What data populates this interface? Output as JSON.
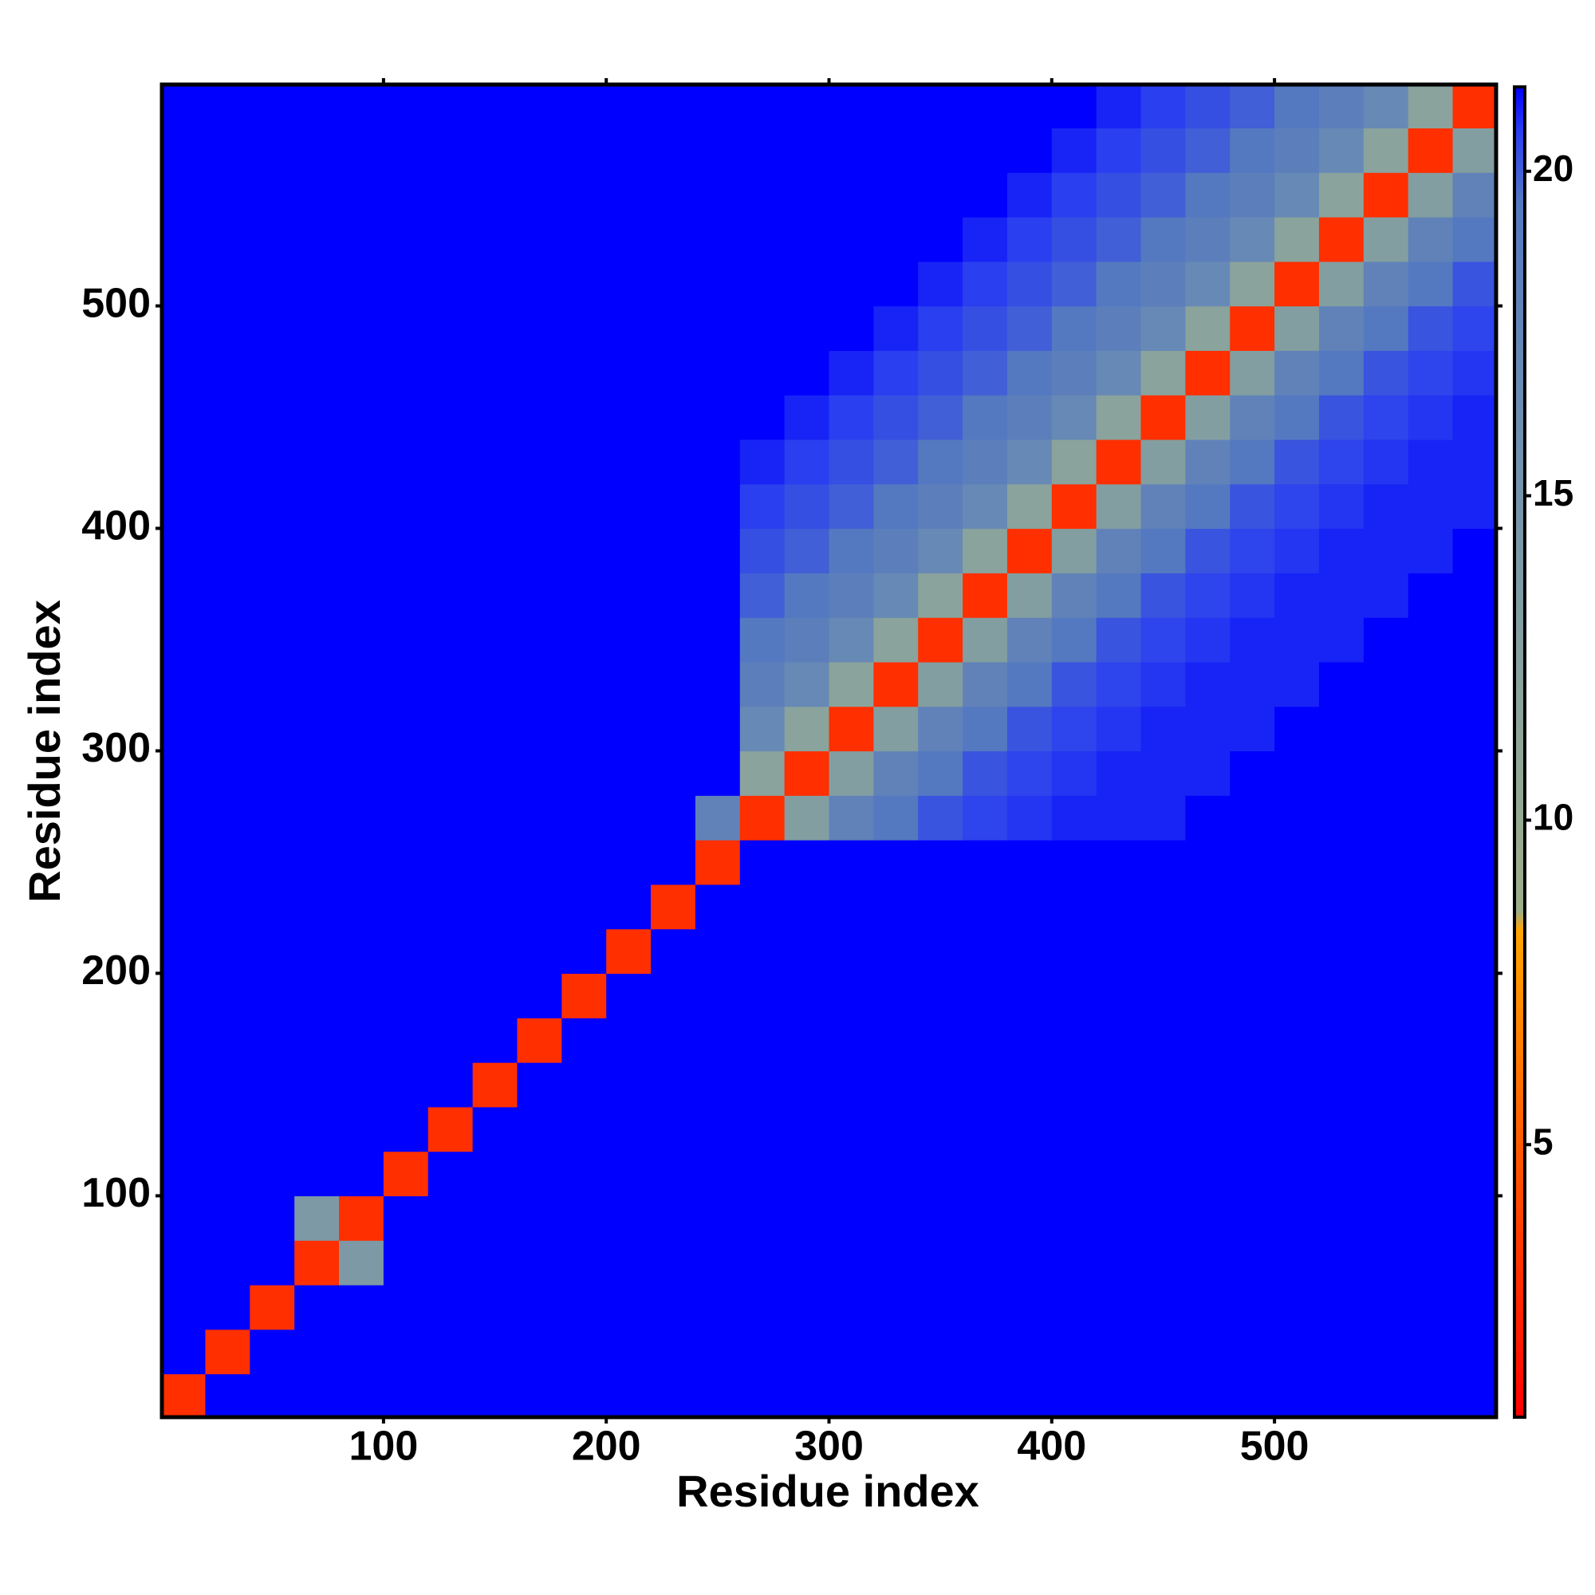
{
  "chart_data": {
    "type": "heatmap",
    "xlabel": "Residue index",
    "ylabel": "Residue index",
    "xlim": [
      0.5,
      599.5
    ],
    "ylim": [
      0.5,
      599.5
    ],
    "xticks": [
      100,
      200,
      300,
      400,
      500
    ],
    "yticks": [
      100,
      200,
      300,
      400,
      500
    ],
    "x": [
      10,
      30,
      50,
      70,
      90,
      110,
      130,
      150,
      170,
      190,
      210,
      230,
      250,
      270,
      290,
      310,
      330,
      350,
      370,
      390,
      410,
      430,
      450,
      470,
      490,
      510,
      530,
      550,
      570,
      590
    ],
    "y": [
      10,
      30,
      50,
      70,
      90,
      110,
      130,
      150,
      170,
      190,
      210,
      230,
      250,
      270,
      290,
      310,
      330,
      350,
      370,
      390,
      410,
      430,
      450,
      470,
      490,
      510,
      530,
      550,
      570,
      590
    ],
    "colorscale": [
      [
        0.8,
        "#ff0000"
      ],
      [
        5,
        "#ff5a00"
      ],
      [
        8.3,
        "#ffa500"
      ],
      [
        8.6,
        "#9cae8a"
      ],
      [
        12,
        "#8aa39c"
      ],
      [
        16,
        "#6f8fb0"
      ],
      [
        19.5,
        "#5479c0"
      ],
      [
        20.6,
        "#2a3ff0"
      ],
      [
        21.3,
        "#0000ff"
      ]
    ],
    "colorbar": {
      "lim": [
        0.8,
        21.3
      ],
      "ticks": [
        5,
        10,
        15,
        20
      ]
    },
    "values": [
      [
        3,
        21.3,
        21.3,
        21.3,
        21.3,
        21.3,
        21.3,
        21.3,
        21.3,
        21.3,
        21.3,
        21.3,
        21.3,
        21.3,
        21.3,
        21.3,
        21.3,
        21.3,
        21.3,
        21.3,
        21.3,
        21.3,
        21.3,
        21.3,
        21.3,
        21.3,
        21.3,
        21.3,
        21.3,
        21.3
      ],
      [
        21.3,
        3,
        21.3,
        21.3,
        21.3,
        21.3,
        21.3,
        21.3,
        21.3,
        21.3,
        21.3,
        21.3,
        21.3,
        21.3,
        21.3,
        21.3,
        21.3,
        21.3,
        21.3,
        21.3,
        21.3,
        21.3,
        21.3,
        21.3,
        21.3,
        21.3,
        21.3,
        21.3,
        21.3,
        21.3
      ],
      [
        21.3,
        21.3,
        3,
        21.3,
        21.3,
        21.3,
        21.3,
        21.3,
        21.3,
        21.3,
        21.3,
        21.3,
        21.3,
        21.3,
        21.3,
        21.3,
        21.3,
        21.3,
        21.3,
        21.3,
        21.3,
        21.3,
        21.3,
        21.3,
        21.3,
        21.3,
        21.3,
        21.3,
        21.3,
        21.3
      ],
      [
        21.3,
        21.3,
        21.3,
        3,
        14,
        21.3,
        21.3,
        21.3,
        21.3,
        21.3,
        21.3,
        21.3,
        21.3,
        21.3,
        21.3,
        21.3,
        21.3,
        21.3,
        21.3,
        21.3,
        21.3,
        21.3,
        21.3,
        21.3,
        21.3,
        21.3,
        21.3,
        21.3,
        21.3,
        21.3
      ],
      [
        21.3,
        21.3,
        21.3,
        14,
        3,
        21.3,
        21.3,
        21.3,
        21.3,
        21.3,
        21.3,
        21.3,
        21.3,
        21.3,
        21.3,
        21.3,
        21.3,
        21.3,
        21.3,
        21.3,
        21.3,
        21.3,
        21.3,
        21.3,
        21.3,
        21.3,
        21.3,
        21.3,
        21.3,
        21.3
      ],
      [
        21.3,
        21.3,
        21.3,
        21.3,
        21.3,
        3,
        21.3,
        21.3,
        21.3,
        21.3,
        21.3,
        21.3,
        21.3,
        21.3,
        21.3,
        21.3,
        21.3,
        21.3,
        21.3,
        21.3,
        21.3,
        21.3,
        21.3,
        21.3,
        21.3,
        21.3,
        21.3,
        21.3,
        21.3,
        21.3
      ],
      [
        21.3,
        21.3,
        21.3,
        21.3,
        21.3,
        21.3,
        3,
        21.3,
        21.3,
        21.3,
        21.3,
        21.3,
        21.3,
        21.3,
        21.3,
        21.3,
        21.3,
        21.3,
        21.3,
        21.3,
        21.3,
        21.3,
        21.3,
        21.3,
        21.3,
        21.3,
        21.3,
        21.3,
        21.3,
        21.3
      ],
      [
        21.3,
        21.3,
        21.3,
        21.3,
        21.3,
        21.3,
        21.3,
        3,
        21.3,
        21.3,
        21.3,
        21.3,
        21.3,
        21.3,
        21.3,
        21.3,
        21.3,
        21.3,
        21.3,
        21.3,
        21.3,
        21.3,
        21.3,
        21.3,
        21.3,
        21.3,
        21.3,
        21.3,
        21.3,
        21.3
      ],
      [
        21.3,
        21.3,
        21.3,
        21.3,
        21.3,
        21.3,
        21.3,
        21.3,
        3,
        21.3,
        21.3,
        21.3,
        21.3,
        21.3,
        21.3,
        21.3,
        21.3,
        21.3,
        21.3,
        21.3,
        21.3,
        21.3,
        21.3,
        21.3,
        21.3,
        21.3,
        21.3,
        21.3,
        21.3,
        21.3
      ],
      [
        21.3,
        21.3,
        21.3,
        21.3,
        21.3,
        21.3,
        21.3,
        21.3,
        21.3,
        3,
        21.3,
        21.3,
        21.3,
        21.3,
        21.3,
        21.3,
        21.3,
        21.3,
        21.3,
        21.3,
        21.3,
        21.3,
        21.3,
        21.3,
        21.3,
        21.3,
        21.3,
        21.3,
        21.3,
        21.3
      ],
      [
        21.3,
        21.3,
        21.3,
        21.3,
        21.3,
        21.3,
        21.3,
        21.3,
        21.3,
        21.3,
        3,
        21.3,
        21.3,
        21.3,
        21.3,
        21.3,
        21.3,
        21.3,
        21.3,
        21.3,
        21.3,
        21.3,
        21.3,
        21.3,
        21.3,
        21.3,
        21.3,
        21.3,
        21.3,
        21.3
      ],
      [
        21.3,
        21.3,
        21.3,
        21.3,
        21.3,
        21.3,
        21.3,
        21.3,
        21.3,
        21.3,
        21.3,
        3,
        21.3,
        21.3,
        21.3,
        21.3,
        21.3,
        21.3,
        21.3,
        21.3,
        21.3,
        21.3,
        21.3,
        21.3,
        21.3,
        21.3,
        21.3,
        21.3,
        21.3,
        21.3
      ],
      [
        21.3,
        21.3,
        21.3,
        21.3,
        21.3,
        21.3,
        21.3,
        21.3,
        21.3,
        21.3,
        21.3,
        21.3,
        3,
        21.3,
        21.3,
        21.3,
        21.3,
        21.3,
        21.3,
        21.3,
        21.3,
        21.3,
        21.3,
        21.3,
        21.3,
        21.3,
        21.3,
        21.3,
        21.3,
        21.3
      ],
      [
        21.3,
        21.3,
        21.3,
        21.3,
        21.3,
        21.3,
        21.3,
        21.3,
        21.3,
        21.3,
        21.3,
        21.3,
        18,
        3,
        13,
        18,
        19.5,
        20.2,
        20.5,
        20.7,
        20.9,
        20.9,
        20.9,
        21.3,
        21.3,
        21.3,
        21.3,
        21.3,
        21.3,
        21.3
      ],
      [
        21.3,
        21.3,
        21.3,
        21.3,
        21.3,
        21.3,
        21.3,
        21.3,
        21.3,
        21.3,
        21.3,
        21.3,
        21.3,
        12,
        3,
        13,
        18,
        19.5,
        20.2,
        20.5,
        20.7,
        20.9,
        20.9,
        20.9,
        21.3,
        21.3,
        21.3,
        21.3,
        21.3,
        21.3
      ],
      [
        21.3,
        21.3,
        21.3,
        21.3,
        21.3,
        21.3,
        21.3,
        21.3,
        21.3,
        21.3,
        21.3,
        21.3,
        21.3,
        17,
        12,
        3,
        13,
        18,
        19.5,
        20.2,
        20.5,
        20.7,
        20.9,
        20.9,
        20.9,
        21.3,
        21.3,
        21.3,
        21.3,
        21.3
      ],
      [
        21.3,
        21.3,
        21.3,
        21.3,
        21.3,
        21.3,
        21.3,
        21.3,
        21.3,
        21.3,
        21.3,
        21.3,
        21.3,
        18.5,
        17,
        12,
        3,
        13,
        18,
        19.5,
        20.2,
        20.5,
        20.7,
        20.9,
        20.9,
        20.9,
        21.3,
        21.3,
        21.3,
        21.3
      ],
      [
        21.3,
        21.3,
        21.3,
        21.3,
        21.3,
        21.3,
        21.3,
        21.3,
        21.3,
        21.3,
        21.3,
        21.3,
        21.3,
        19.5,
        18.5,
        17,
        12,
        3,
        13,
        18,
        19.5,
        20.2,
        20.5,
        20.7,
        20.9,
        20.9,
        20.9,
        21.3,
        21.3,
        21.3
      ],
      [
        21.3,
        21.3,
        21.3,
        21.3,
        21.3,
        21.3,
        21.3,
        21.3,
        21.3,
        21.3,
        21.3,
        21.3,
        21.3,
        20,
        19.5,
        18.5,
        17,
        12,
        3,
        13,
        18,
        19.5,
        20.2,
        20.5,
        20.7,
        20.9,
        20.9,
        20.9,
        21.3,
        21.3
      ],
      [
        21.3,
        21.3,
        21.3,
        21.3,
        21.3,
        21.3,
        21.3,
        21.3,
        21.3,
        21.3,
        21.3,
        21.3,
        21.3,
        20.3,
        20,
        19.5,
        18.5,
        17,
        12,
        3,
        13,
        18,
        19.5,
        20.2,
        20.5,
        20.7,
        20.9,
        20.9,
        20.9,
        21.3
      ],
      [
        21.3,
        21.3,
        21.3,
        21.3,
        21.3,
        21.3,
        21.3,
        21.3,
        21.3,
        21.3,
        21.3,
        21.3,
        21.3,
        20.6,
        20.3,
        20,
        19.5,
        18.5,
        17,
        12,
        3,
        13,
        18,
        19.5,
        20.2,
        20.5,
        20.7,
        20.9,
        20.9,
        20.9
      ],
      [
        21.3,
        21.3,
        21.3,
        21.3,
        21.3,
        21.3,
        21.3,
        21.3,
        21.3,
        21.3,
        21.3,
        21.3,
        21.3,
        20.9,
        20.6,
        20.3,
        20,
        19.5,
        18.5,
        17,
        12,
        3,
        13,
        18,
        19.5,
        20.2,
        20.5,
        20.7,
        20.9,
        20.9
      ],
      [
        21.3,
        21.3,
        21.3,
        21.3,
        21.3,
        21.3,
        21.3,
        21.3,
        21.3,
        21.3,
        21.3,
        21.3,
        21.3,
        21.3,
        20.9,
        20.6,
        20.3,
        20,
        19.5,
        18.5,
        17,
        12,
        3,
        13,
        18,
        19.5,
        20.2,
        20.5,
        20.7,
        20.9
      ],
      [
        21.3,
        21.3,
        21.3,
        21.3,
        21.3,
        21.3,
        21.3,
        21.3,
        21.3,
        21.3,
        21.3,
        21.3,
        21.3,
        21.3,
        21.3,
        20.9,
        20.6,
        20.3,
        20,
        19.5,
        18.5,
        17,
        12,
        3,
        13,
        18,
        19.5,
        20.2,
        20.5,
        20.7
      ],
      [
        21.3,
        21.3,
        21.3,
        21.3,
        21.3,
        21.3,
        21.3,
        21.3,
        21.3,
        21.3,
        21.3,
        21.3,
        21.3,
        21.3,
        21.3,
        21.3,
        20.9,
        20.6,
        20.3,
        20,
        19.5,
        18.5,
        17,
        12,
        3,
        13,
        18,
        19.5,
        20.2,
        20.5
      ],
      [
        21.3,
        21.3,
        21.3,
        21.3,
        21.3,
        21.3,
        21.3,
        21.3,
        21.3,
        21.3,
        21.3,
        21.3,
        21.3,
        21.3,
        21.3,
        21.3,
        21.3,
        20.9,
        20.6,
        20.3,
        20,
        19.5,
        18.5,
        17,
        12,
        3,
        13,
        18,
        19.5,
        20.2
      ],
      [
        21.3,
        21.3,
        21.3,
        21.3,
        21.3,
        21.3,
        21.3,
        21.3,
        21.3,
        21.3,
        21.3,
        21.3,
        21.3,
        21.3,
        21.3,
        21.3,
        21.3,
        21.3,
        20.9,
        20.6,
        20.3,
        20,
        19.5,
        18.5,
        17,
        12,
        3,
        13,
        18,
        19.5
      ],
      [
        21.3,
        21.3,
        21.3,
        21.3,
        21.3,
        21.3,
        21.3,
        21.3,
        21.3,
        21.3,
        21.3,
        21.3,
        21.3,
        21.3,
        21.3,
        21.3,
        21.3,
        21.3,
        21.3,
        20.9,
        20.6,
        20.3,
        20,
        19.5,
        18.5,
        17,
        12,
        3,
        13,
        18
      ],
      [
        21.3,
        21.3,
        21.3,
        21.3,
        21.3,
        21.3,
        21.3,
        21.3,
        21.3,
        21.3,
        21.3,
        21.3,
        21.3,
        21.3,
        21.3,
        21.3,
        21.3,
        21.3,
        21.3,
        21.3,
        20.9,
        20.6,
        20.3,
        20,
        19.5,
        18.5,
        17,
        12,
        3,
        13
      ],
      [
        21.3,
        21.3,
        21.3,
        21.3,
        21.3,
        21.3,
        21.3,
        21.3,
        21.3,
        21.3,
        21.3,
        21.3,
        21.3,
        21.3,
        21.3,
        21.3,
        21.3,
        21.3,
        21.3,
        21.3,
        21.3,
        20.9,
        20.6,
        20.3,
        20,
        19.5,
        18.5,
        17,
        12,
        3
      ]
    ]
  }
}
